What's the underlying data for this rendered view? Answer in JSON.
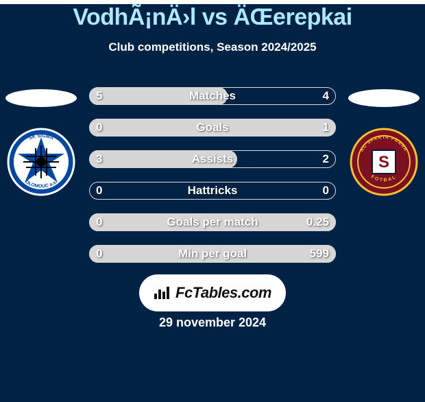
{
  "background_color": "#002345",
  "title": {
    "text": "VodhÃ¡nÄ›l vs ÄŒerepkai",
    "fontsize": 34,
    "color": "#aee8ff"
  },
  "subtitle": {
    "text": "Club competitions, Season 2024/2025",
    "fontsize": 17,
    "color": "#ffffff"
  },
  "left_club": {
    "name": "SK Sigma Olomouc",
    "logo_colors": {
      "primary": "#0047a0",
      "secondary": "#ffffff",
      "accent": "#000000"
    }
  },
  "right_club": {
    "name": "AC Sparta Praha",
    "logo_colors": {
      "primary": "#7a1020",
      "secondary": "#f8c030",
      "accent": "#0a1a3a"
    }
  },
  "bars": {
    "track_border_color": "#dcdcdc",
    "fill_color": "#d6d6d6",
    "label_fontsize": 17,
    "value_fontsize": 17,
    "items": [
      {
        "label": "Matches",
        "left": "5",
        "right": "4",
        "fill_from": "left",
        "fill_frac": 0.56
      },
      {
        "label": "Goals",
        "left": "0",
        "right": "1",
        "fill_from": "right",
        "fill_frac": 1.0
      },
      {
        "label": "Assists",
        "left": "3",
        "right": "2",
        "fill_from": "left",
        "fill_frac": 0.6
      },
      {
        "label": "Hattricks",
        "left": "0",
        "right": "0",
        "fill_from": "left",
        "fill_frac": 0.0
      },
      {
        "label": "Goals per match",
        "left": "0",
        "right": "0.25",
        "fill_from": "right",
        "fill_frac": 1.0
      },
      {
        "label": "Min per goal",
        "left": "0",
        "right": "599",
        "fill_from": "right",
        "fill_frac": 1.0
      }
    ]
  },
  "footer": {
    "brand_text": "FcTables.com",
    "date": "29 november 2024",
    "date_fontsize": 18
  }
}
